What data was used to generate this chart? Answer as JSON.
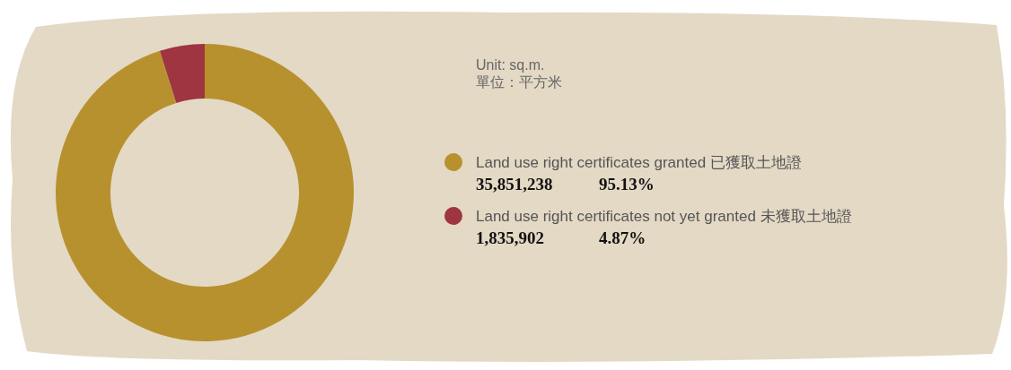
{
  "chart_data": {
    "type": "donut",
    "title": "Unit: sq.m.",
    "subtitle": "單位：平方米",
    "categories": [
      "Land use right certificates granted 已獲取土地證",
      "Land use right certificates not yet granted 未獲取土地證"
    ],
    "values": [
      35851238,
      1835902
    ],
    "colors": [
      "#b8912f",
      "#9e3540"
    ],
    "value_labels": [
      "35,851,238",
      "1,835,902"
    ],
    "annotations": [
      "95.13%",
      "4.87%"
    ],
    "legend": "right"
  }
}
